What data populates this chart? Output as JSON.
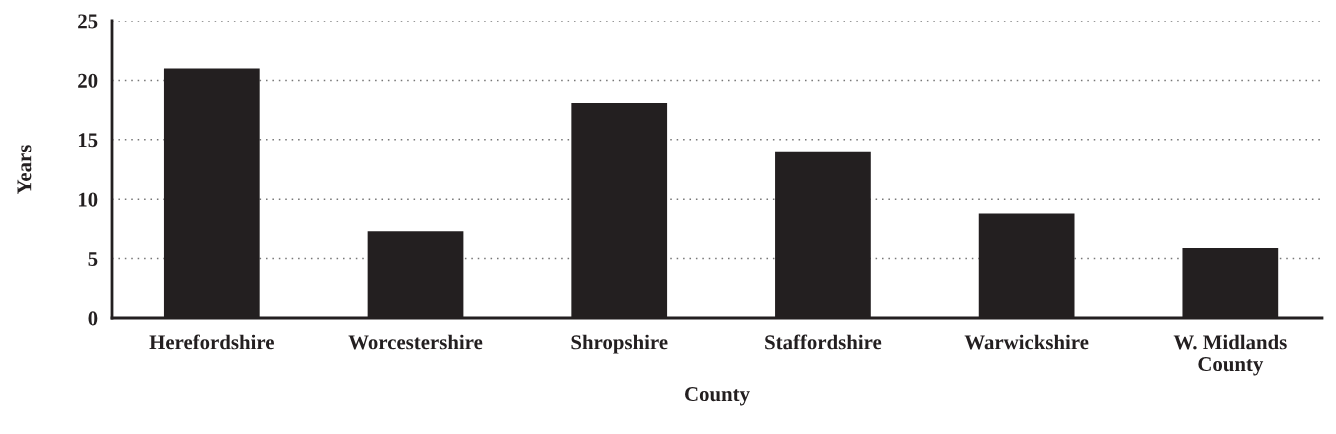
{
  "chart_data": {
    "type": "bar",
    "xlabel": "County",
    "ylabel": "Years",
    "categories": [
      "Herefordshire",
      "Worcestershire",
      "Shropshire",
      "Staffordshire",
      "Warwickshire",
      "W. Midlands County"
    ],
    "values": [
      21.0,
      7.3,
      18.1,
      14.0,
      8.8,
      5.9
    ],
    "color": "#231f20",
    "ylim": [
      0,
      25
    ],
    "yticks": [
      0,
      5,
      10,
      15,
      20,
      25
    ],
    "grid": "y",
    "legend": false
  }
}
